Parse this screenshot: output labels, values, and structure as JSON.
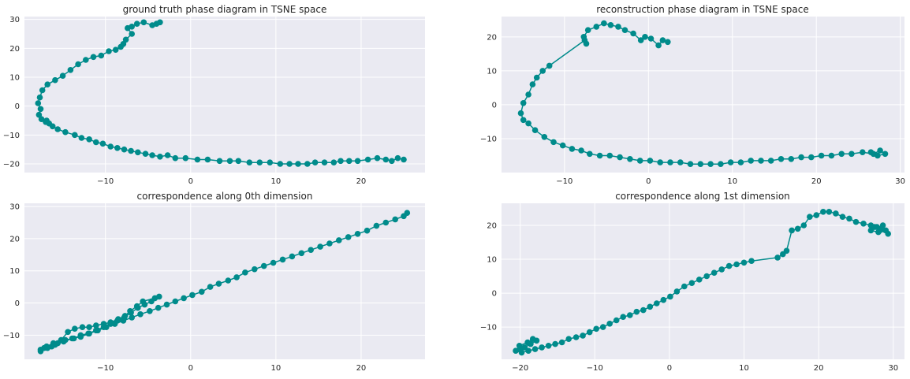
{
  "chart_data": [
    {
      "type": "line",
      "title": "ground truth phase diagram in TSNE space",
      "xlabel": "",
      "ylabel": "",
      "xlim": [
        -19.5,
        27.5
      ],
      "ylim": [
        -23,
        31
      ],
      "xticks": [
        -10,
        0,
        10,
        20
      ],
      "yticks": [
        -20,
        -10,
        0,
        10,
        20,
        30
      ],
      "xtick_labels": [
        "−10",
        "0",
        "10",
        "20"
      ],
      "ytick_labels": [
        "−20",
        "−10",
        "0",
        "10",
        "20",
        "30"
      ],
      "grid": true,
      "series": [
        {
          "color": "#008b8b",
          "marker": "circle",
          "x": [
            -4.0,
            -3.6,
            -4.5,
            -5.5,
            -6.3,
            -6.9,
            -7.4,
            -6.9,
            -7.6,
            -7.9,
            -8.2,
            -8.8,
            -9.6,
            -10.5,
            -11.4,
            -12.3,
            -13.2,
            -14.1,
            -15.0,
            -15.9,
            -16.8,
            -17.4,
            -17.7,
            -17.9,
            -17.6,
            -17.8,
            -17.5,
            -17.0,
            -16.6,
            -16.9,
            -16.2,
            -15.6,
            -14.7,
            -13.6,
            -12.8,
            -11.9,
            -11.1,
            -10.3,
            -9.4,
            -8.6,
            -7.8,
            -7.0,
            -6.2,
            -5.3,
            -4.5,
            -3.6,
            -2.7,
            -1.8,
            -0.6,
            0.8,
            2.0,
            3.4,
            4.6,
            5.6,
            6.9,
            8.1,
            9.3,
            10.5,
            11.6,
            12.6,
            13.7,
            14.6,
            15.7,
            16.8,
            17.6,
            18.6,
            19.6,
            20.8,
            21.9,
            22.9,
            23.6,
            24.3,
            25.0
          ],
          "y": [
            28.5,
            29.0,
            28.0,
            29.0,
            28.5,
            27.5,
            27.0,
            25.0,
            23.0,
            21.5,
            20.5,
            19.5,
            19.0,
            17.5,
            17.0,
            16.0,
            14.5,
            12.5,
            10.5,
            9.0,
            7.5,
            5.5,
            3.0,
            1.0,
            -1.0,
            -3.0,
            -4.5,
            -5.5,
            -6.0,
            -5.0,
            -7.0,
            -8.0,
            -9.0,
            -10.0,
            -11.0,
            -11.5,
            -12.5,
            -13.0,
            -14.0,
            -14.5,
            -15.0,
            -15.5,
            -16.0,
            -16.5,
            -17.0,
            -17.5,
            -17.0,
            -18.0,
            -18.0,
            -18.5,
            -18.5,
            -19.0,
            -19.0,
            -19.0,
            -19.5,
            -19.5,
            -19.5,
            -20.0,
            -20.0,
            -20.0,
            -20.0,
            -19.5,
            -19.5,
            -19.5,
            -19.0,
            -19.0,
            -19.0,
            -18.5,
            -18.0,
            -18.5,
            -19.0,
            -18.0,
            -18.5
          ]
        }
      ]
    },
    {
      "type": "line",
      "title": "reconstruction phase diagram in TSNE space",
      "xlabel": "",
      "ylabel": "",
      "xlim": [
        -17.5,
        30.5
      ],
      "ylim": [
        -20,
        26
      ],
      "xticks": [
        -10,
        0,
        10,
        20,
        30
      ],
      "yticks": [
        -10,
        0,
        10,
        20
      ],
      "xtick_labels": [
        "−10",
        "0",
        "10",
        "20",
        "30"
      ],
      "ytick_labels": [
        "−10",
        "0",
        "10",
        "20"
      ],
      "grid": true,
      "series": [
        {
          "color": "#008b8b",
          "marker": "circle",
          "x": [
            2.3,
            1.7,
            1.2,
            0.3,
            -0.4,
            -0.9,
            -1.8,
            -2.8,
            -3.6,
            -4.5,
            -5.3,
            -6.2,
            -7.2,
            -7.7,
            -7.4,
            -7.6,
            -11.8,
            -12.6,
            -13.3,
            -13.8,
            -14.3,
            -14.9,
            -15.2,
            -14.9,
            -14.3,
            -13.5,
            -12.4,
            -11.3,
            -10.2,
            -9.1,
            -8.0,
            -7.0,
            -5.8,
            -4.6,
            -3.4,
            -2.2,
            -1.0,
            0.2,
            1.4,
            2.6,
            3.8,
            5.0,
            6.2,
            7.4,
            8.6,
            9.8,
            11.0,
            12.2,
            13.4,
            14.6,
            15.8,
            17.0,
            18.2,
            19.4,
            20.6,
            21.8,
            23.0,
            24.2,
            25.5,
            26.8,
            27.6,
            28.2,
            27.3,
            26.5
          ],
          "y": [
            18.5,
            19.0,
            17.5,
            19.5,
            20.0,
            19.0,
            21.0,
            22.0,
            23.0,
            23.5,
            24.0,
            23.0,
            22.0,
            20.0,
            18.0,
            19.0,
            11.5,
            10.0,
            8.0,
            6.0,
            3.0,
            0.5,
            -2.5,
            -4.5,
            -5.5,
            -7.5,
            -9.5,
            -11.0,
            -12.0,
            -13.0,
            -13.5,
            -14.5,
            -15.0,
            -15.0,
            -15.5,
            -16.0,
            -16.5,
            -16.5,
            -17.0,
            -17.0,
            -17.0,
            -17.5,
            -17.5,
            -17.5,
            -17.5,
            -17.0,
            -17.0,
            -16.5,
            -16.5,
            -16.5,
            -16.0,
            -16.0,
            -15.5,
            -15.5,
            -15.0,
            -15.0,
            -14.5,
            -14.5,
            -14.0,
            -14.5,
            -13.5,
            -14.5,
            -15.0,
            -14.0
          ]
        }
      ]
    },
    {
      "type": "line",
      "title": "correspondence along 0th dimension",
      "xlabel": "",
      "ylabel": "",
      "xlim": [
        -19.5,
        27.5
      ],
      "ylim": [
        -17.5,
        31
      ],
      "xticks": [
        -10,
        0,
        10,
        20
      ],
      "yticks": [
        -10,
        0,
        10,
        20,
        30
      ],
      "xtick_labels": [
        "−10",
        "0",
        "10",
        "20"
      ],
      "ytick_labels": [
        "−10",
        "0",
        "10",
        "20",
        "30"
      ],
      "grid": true,
      "series": [
        {
          "color": "#008b8b",
          "marker": "circle",
          "x": [
            -17.6,
            -17.2,
            -16.3,
            -15.6,
            -14.7,
            -13.7,
            -12.9,
            -12.0,
            -11.1,
            -10.2,
            -9.4,
            -8.6,
            -7.8,
            -7.0,
            -6.2,
            -5.4,
            -4.6,
            -3.7,
            -4.2,
            -5.6,
            -6.3,
            -7.1,
            -7.7,
            -8.5,
            -9.4,
            -10.2,
            -11.1,
            -11.9,
            -12.7,
            -13.6,
            -14.4,
            -15.2,
            -16.1,
            -16.9,
            -17.6,
            -16.8,
            -15.9,
            -14.9,
            -13.9,
            -12.9,
            -11.9,
            -10.9,
            -9.9,
            -8.9,
            -7.9,
            -6.9,
            -5.9,
            -4.8,
            -3.8,
            -2.8,
            -1.8,
            -0.8,
            0.2,
            1.3,
            2.3,
            3.3,
            4.4,
            5.4,
            6.4,
            7.5,
            8.6,
            9.7,
            10.8,
            11.9,
            13.0,
            14.1,
            15.2,
            16.3,
            17.4,
            18.5,
            19.6,
            20.7,
            21.8,
            22.9,
            24.0,
            25.0,
            25.4
          ],
          "y": [
            -15.0,
            -14.0,
            -13.5,
            -12.5,
            -11.5,
            -11.0,
            -10.0,
            -9.5,
            -8.5,
            -7.5,
            -6.5,
            -5.5,
            -4.5,
            -3.0,
            -1.5,
            -0.5,
            0.5,
            2.0,
            1.5,
            0.5,
            -1.0,
            -2.5,
            -4.0,
            -5.0,
            -6.0,
            -6.5,
            -7.0,
            -7.5,
            -7.5,
            -8.0,
            -9.0,
            -11.5,
            -12.5,
            -13.5,
            -14.5,
            -14.0,
            -13.0,
            -12.0,
            -11.0,
            -10.5,
            -9.5,
            -8.5,
            -7.5,
            -6.5,
            -5.5,
            -4.5,
            -3.5,
            -2.5,
            -1.5,
            -0.5,
            0.5,
            1.5,
            2.5,
            3.5,
            5.0,
            6.0,
            7.0,
            8.0,
            9.5,
            10.5,
            11.5,
            12.5,
            13.5,
            14.5,
            15.5,
            16.5,
            17.5,
            18.5,
            19.5,
            20.5,
            21.5,
            22.5,
            24.0,
            25.0,
            26.0,
            27.0,
            28.0
          ]
        }
      ]
    },
    {
      "type": "line",
      "title": "correspondence along 1st dimension",
      "xlabel": "",
      "ylabel": "",
      "xlim": [
        -22.5,
        31.5
      ],
      "ylim": [
        -19.5,
        26.5
      ],
      "xticks": [
        -20,
        -10,
        0,
        10,
        20,
        30
      ],
      "yticks": [
        -10,
        0,
        10,
        20
      ],
      "xtick_labels": [
        "−20",
        "−10",
        "0",
        "10",
        "20",
        "30"
      ],
      "ytick_labels": [
        "−10",
        "0",
        "10",
        "20"
      ],
      "grid": true,
      "series": [
        {
          "color": "#008b8b",
          "marker": "circle",
          "x": [
            -20.0,
            -19.4,
            -18.6,
            -17.8,
            -18.3,
            -19.0,
            -20.1,
            -20.6,
            -19.8,
            -18.9,
            -18.0,
            -17.1,
            -16.2,
            -15.3,
            -14.4,
            -13.5,
            -12.5,
            -11.6,
            -10.7,
            -9.8,
            -8.9,
            -8.0,
            -7.1,
            -6.2,
            -5.3,
            -4.4,
            -3.5,
            -2.6,
            -1.7,
            -0.8,
            0.1,
            1.0,
            2.0,
            3.0,
            4.0,
            5.0,
            6.0,
            7.0,
            8.0,
            9.0,
            10.0,
            11.0,
            14.5,
            15.2,
            15.7,
            16.4,
            17.2,
            18.0,
            18.8,
            19.7,
            20.6,
            21.4,
            22.3,
            23.2,
            24.1,
            25.0,
            26.0,
            27.0,
            27.8,
            28.5,
            29.0,
            28.0,
            27.0,
            28.6,
            29.3,
            28.2,
            27.5
          ],
          "y": [
            -16.5,
            -16.0,
            -15.0,
            -14.0,
            -13.5,
            -14.5,
            -15.5,
            -17.0,
            -17.5,
            -17.0,
            -16.5,
            -16.0,
            -15.5,
            -15.0,
            -14.5,
            -13.5,
            -13.0,
            -12.5,
            -11.5,
            -10.5,
            -10.0,
            -9.0,
            -8.0,
            -7.0,
            -6.5,
            -5.5,
            -5.0,
            -4.0,
            -3.0,
            -2.0,
            -1.0,
            0.5,
            2.0,
            3.0,
            4.0,
            5.0,
            6.0,
            7.0,
            8.0,
            8.5,
            9.0,
            9.5,
            10.5,
            11.5,
            12.5,
            18.5,
            19.0,
            20.0,
            22.5,
            23.0,
            24.0,
            24.0,
            23.5,
            22.5,
            22.0,
            21.0,
            20.5,
            20.0,
            19.5,
            19.0,
            18.5,
            18.0,
            18.5,
            20.0,
            17.5,
            18.5,
            19.5
          ]
        }
      ]
    }
  ]
}
